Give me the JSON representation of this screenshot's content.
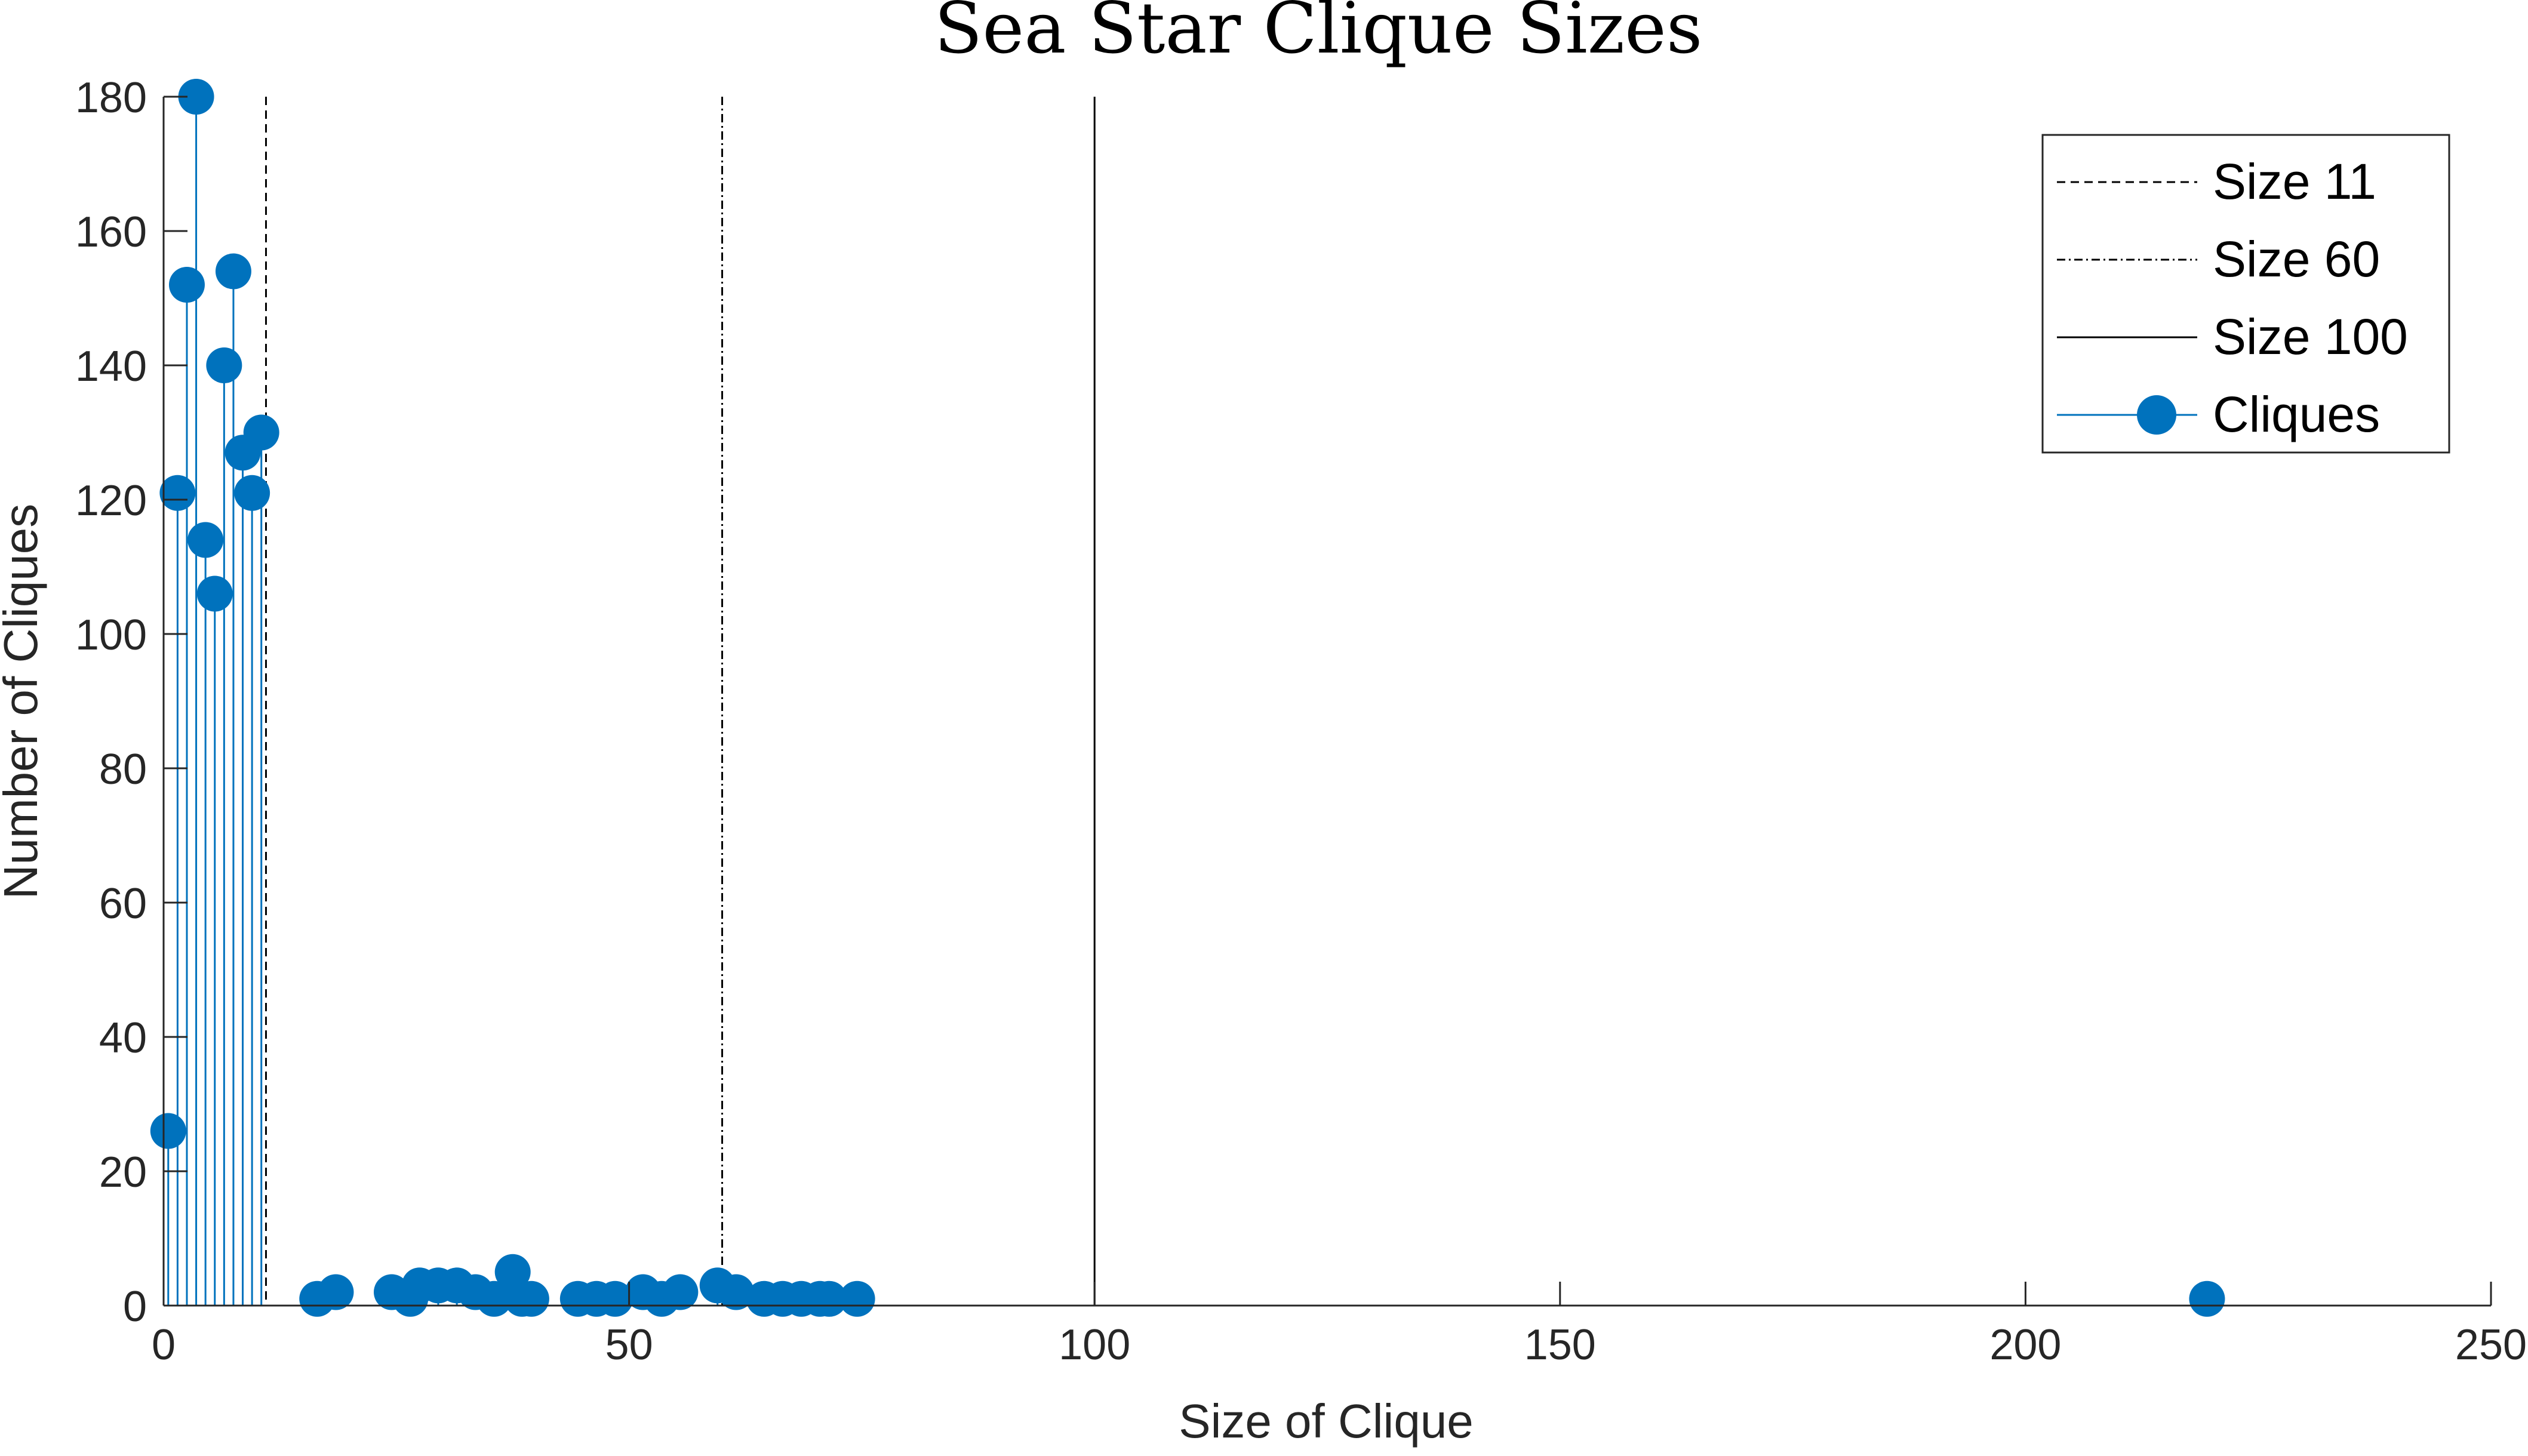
{
  "chart_data": {
    "type": "stem",
    "title": "Sea Star Clique Sizes",
    "xlabel": "Size of Clique",
    "ylabel": "Number of Cliques",
    "xlim": [
      0,
      250
    ],
    "ylim": [
      0,
      180
    ],
    "xticks": [
      0,
      50,
      100,
      150,
      200,
      250
    ],
    "yticks": [
      0,
      20,
      40,
      60,
      80,
      100,
      120,
      140,
      160,
      180
    ],
    "grid": false,
    "legend_position": "top-right",
    "colors": {
      "series": "#0072BD",
      "reference_lines": "#000000",
      "axes": "#262626"
    },
    "reference_lines": [
      {
        "name": "Size 11",
        "x": 11,
        "style": "dashed"
      },
      {
        "name": "Size 60",
        "x": 60,
        "style": "dash-dot"
      },
      {
        "name": "Size 100",
        "x": 100,
        "style": "solid"
      }
    ],
    "series": [
      {
        "name": "Cliques",
        "points": [
          {
            "x": 0.5,
            "y": 26
          },
          {
            "x": 1.5,
            "y": 121
          },
          {
            "x": 2.5,
            "y": 152
          },
          {
            "x": 3.5,
            "y": 180
          },
          {
            "x": 4.5,
            "y": 114
          },
          {
            "x": 5.5,
            "y": 106
          },
          {
            "x": 6.5,
            "y": 140
          },
          {
            "x": 7.5,
            "y": 154
          },
          {
            "x": 8.5,
            "y": 127
          },
          {
            "x": 9.5,
            "y": 121
          },
          {
            "x": 10.5,
            "y": 130
          },
          {
            "x": 16.5,
            "y": 1
          },
          {
            "x": 18.5,
            "y": 2
          },
          {
            "x": 24.5,
            "y": 2
          },
          {
            "x": 26.5,
            "y": 1
          },
          {
            "x": 27.5,
            "y": 3
          },
          {
            "x": 29.5,
            "y": 3
          },
          {
            "x": 31.5,
            "y": 3
          },
          {
            "x": 33.5,
            "y": 2
          },
          {
            "x": 35.5,
            "y": 1
          },
          {
            "x": 37.5,
            "y": 5
          },
          {
            "x": 38.5,
            "y": 1
          },
          {
            "x": 39.5,
            "y": 1
          },
          {
            "x": 44.5,
            "y": 1
          },
          {
            "x": 46.5,
            "y": 1
          },
          {
            "x": 48.5,
            "y": 1
          },
          {
            "x": 51.5,
            "y": 2
          },
          {
            "x": 53.5,
            "y": 1
          },
          {
            "x": 55.5,
            "y": 2
          },
          {
            "x": 59.5,
            "y": 3
          },
          {
            "x": 61.5,
            "y": 2
          },
          {
            "x": 64.5,
            "y": 1
          },
          {
            "x": 66.5,
            "y": 1
          },
          {
            "x": 68.5,
            "y": 1
          },
          {
            "x": 70.5,
            "y": 1
          },
          {
            "x": 71.5,
            "y": 1
          },
          {
            "x": 74.5,
            "y": 1
          },
          {
            "x": 219.5,
            "y": 1
          }
        ]
      }
    ]
  }
}
